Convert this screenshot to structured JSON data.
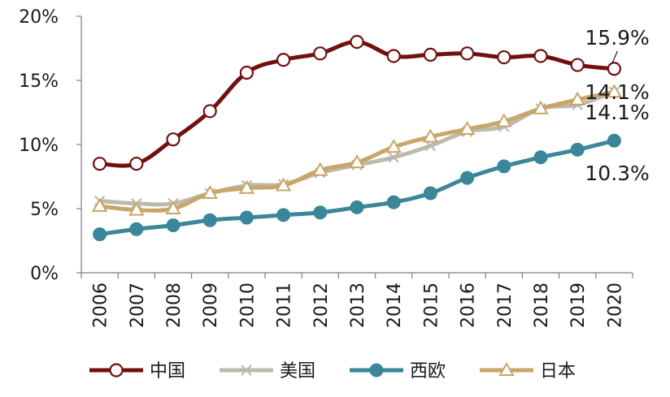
{
  "chart_data": {
    "type": "line",
    "title": "",
    "xlabel": "",
    "ylabel": "",
    "x": [
      "2006",
      "2007",
      "2008",
      "2009",
      "2010",
      "2011",
      "2012",
      "2013",
      "2014",
      "2015",
      "2016",
      "2017",
      "2018",
      "2019",
      "2020"
    ],
    "ylim": [
      0,
      20
    ],
    "yticks": [
      0,
      5,
      10,
      15,
      20
    ],
    "ytick_labels": [
      "0%",
      "5%",
      "10%",
      "15%",
      "20%"
    ],
    "legend_position": "bottom",
    "series": [
      {
        "name": "中国",
        "color": "#720F0F",
        "marker": "open-circle",
        "values": [
          8.5,
          8.5,
          10.4,
          12.6,
          15.6,
          16.6,
          17.1,
          18.0,
          16.9,
          17.0,
          17.1,
          16.8,
          16.9,
          16.2,
          15.9
        ]
      },
      {
        "name": "美国",
        "color": "#BDB9AD",
        "marker": "x",
        "values": [
          5.6,
          5.4,
          5.4,
          6.2,
          6.8,
          6.9,
          7.8,
          8.4,
          9.0,
          9.9,
          11.0,
          11.4,
          12.8,
          13.1,
          14.1
        ]
      },
      {
        "name": "西欧",
        "color": "#3A8799",
        "marker": "filled-circle",
        "values": [
          3.0,
          3.4,
          3.7,
          4.1,
          4.3,
          4.5,
          4.7,
          5.1,
          5.5,
          6.2,
          7.4,
          8.3,
          9.0,
          9.6,
          10.3
        ]
      },
      {
        "name": "日本",
        "color": "#C8A668",
        "marker": "open-triangle",
        "values": [
          5.2,
          4.9,
          5.0,
          6.2,
          6.6,
          6.8,
          8.0,
          8.6,
          9.8,
          10.6,
          11.2,
          11.8,
          12.8,
          13.5,
          14.1
        ]
      }
    ],
    "annotations": [
      {
        "series": "中国",
        "text": "15.9%"
      },
      {
        "series": "美国",
        "text": "14.1%"
      },
      {
        "series": "日本",
        "text": "14.1%"
      },
      {
        "series": "西欧",
        "text": "10.3%"
      }
    ]
  }
}
